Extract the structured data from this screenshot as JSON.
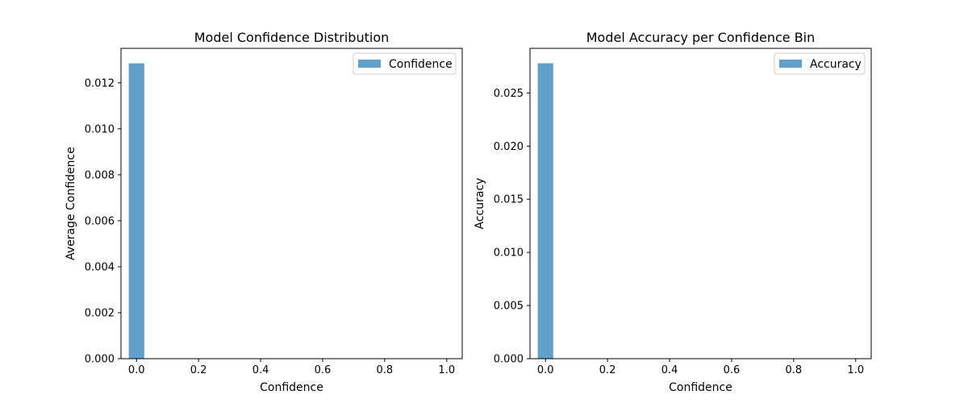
{
  "chart_data": [
    {
      "type": "bar",
      "title": "Model Confidence Distribution",
      "xlabel": "Confidence",
      "ylabel": "Average Confidence",
      "xlim": [
        -0.05,
        1.05
      ],
      "ylim": [
        0,
        0.0135
      ],
      "x_ticks": [
        0.0,
        0.2,
        0.4,
        0.6,
        0.8,
        1.0
      ],
      "x_tick_labels": [
        "0.0",
        "0.2",
        "0.4",
        "0.6",
        "0.8",
        "1.0"
      ],
      "y_ticks": [
        0,
        0.002,
        0.004,
        0.006,
        0.008,
        0.01,
        0.012
      ],
      "y_tick_labels": [
        "0.000",
        "0.002",
        "0.004",
        "0.006",
        "0.008",
        "0.010",
        "0.012"
      ],
      "bar_width": 0.05,
      "bars": [
        {
          "x": 0.0,
          "value": 0.01285
        }
      ],
      "series_name": "Confidence",
      "color": "#1f77b4",
      "alpha": 0.7,
      "legend": "top-right",
      "grid": false
    },
    {
      "type": "bar",
      "title": "Model Accuracy per Confidence Bin",
      "xlabel": "Confidence",
      "ylabel": "Accuracy",
      "xlim": [
        -0.05,
        1.05
      ],
      "ylim": [
        0,
        0.0292
      ],
      "x_ticks": [
        0.0,
        0.2,
        0.4,
        0.6,
        0.8,
        1.0
      ],
      "x_tick_labels": [
        "0.0",
        "0.2",
        "0.4",
        "0.6",
        "0.8",
        "1.0"
      ],
      "y_ticks": [
        0,
        0.005,
        0.01,
        0.015,
        0.02,
        0.025
      ],
      "y_tick_labels": [
        "0.000",
        "0.005",
        "0.010",
        "0.015",
        "0.020",
        "0.025"
      ],
      "bar_width": 0.05,
      "bars": [
        {
          "x": 0.0,
          "value": 0.0278
        }
      ],
      "series_name": "Accuracy",
      "color": "#1f77b4",
      "alpha": 0.7,
      "legend": "top-right",
      "grid": false
    }
  ]
}
